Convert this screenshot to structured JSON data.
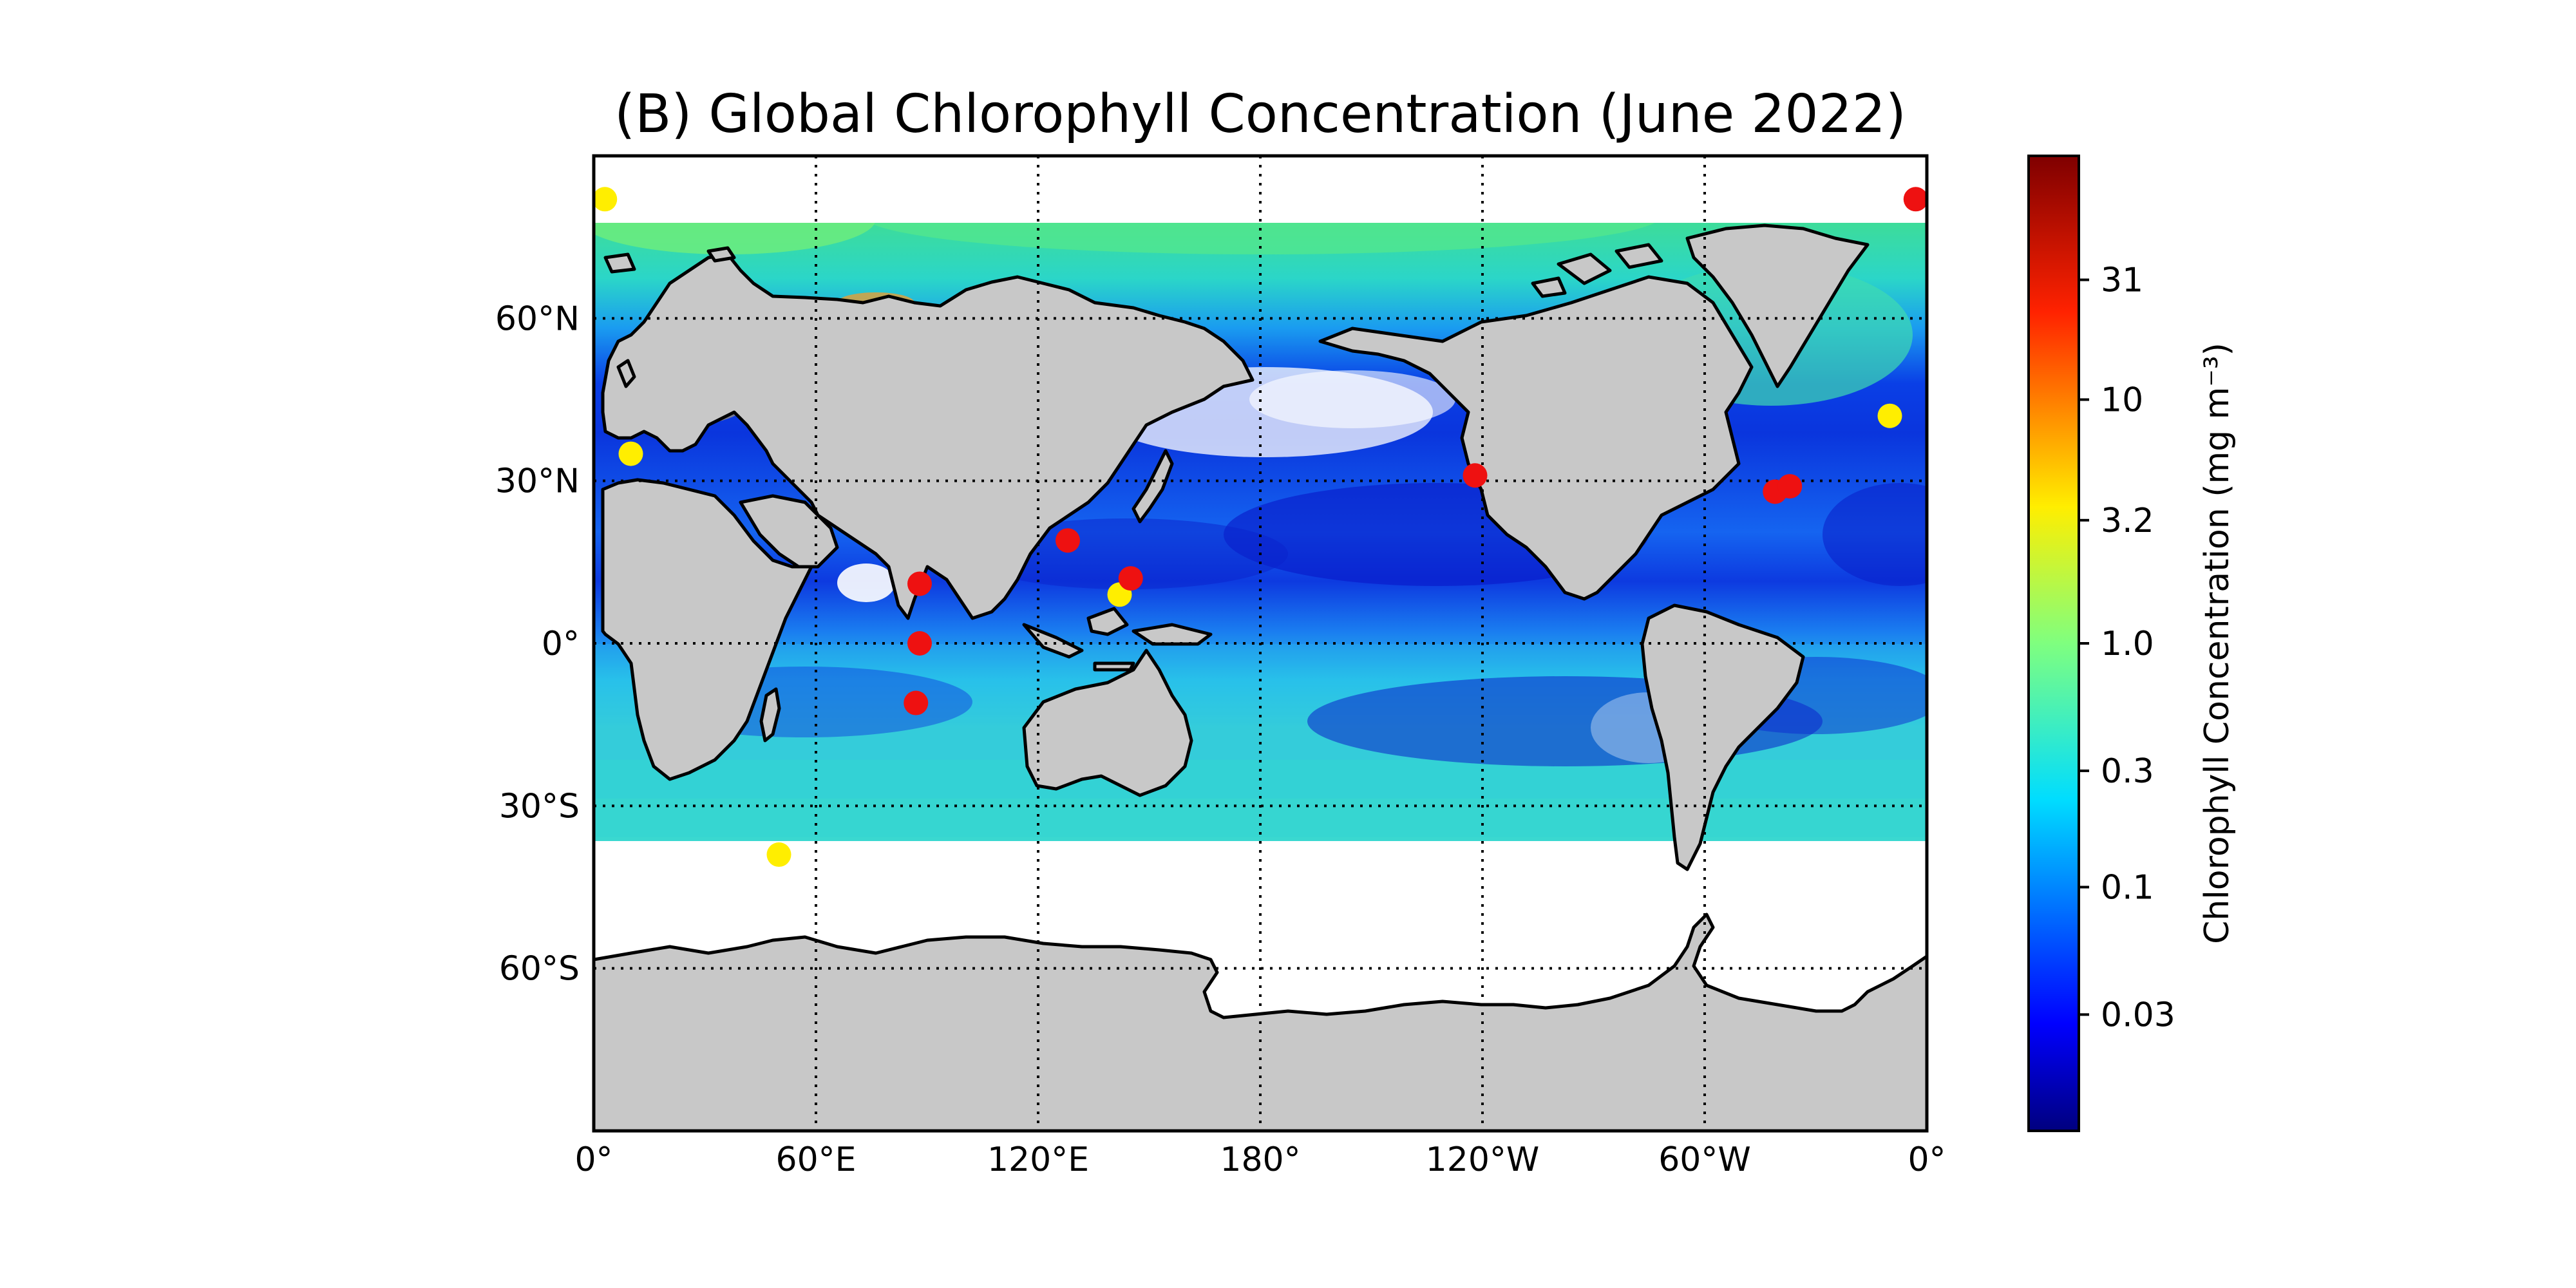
{
  "title": "(B) Global Chlorophyll Concentration (June 2022)",
  "map": {
    "projection": "equirectangular",
    "central_longitude": 180,
    "lon_range": [
      0,
      360
    ],
    "lat_range": [
      -90,
      90
    ],
    "x_ticks": [
      {
        "lon": 0,
        "label": "0°"
      },
      {
        "lon": 60,
        "label": "60°E"
      },
      {
        "lon": 120,
        "label": "120°E"
      },
      {
        "lon": 180,
        "label": "180°"
      },
      {
        "lon": 240,
        "label": "120°W"
      },
      {
        "lon": 300,
        "label": "60°W"
      },
      {
        "lon": 360,
        "label": "0°"
      }
    ],
    "y_ticks": [
      {
        "lat": 60,
        "label": "60°N"
      },
      {
        "lat": 30,
        "label": "30°N"
      },
      {
        "lat": 0,
        "label": "0°"
      },
      {
        "lat": -30,
        "label": "30°S"
      },
      {
        "lat": -60,
        "label": "60°S"
      }
    ],
    "gridlines": "dotted",
    "land_color": "#c8c8c8"
  },
  "colorbar": {
    "label": "Chlorophyll Concentration (mg m⁻³)",
    "scale": "log",
    "range": [
      0.01,
      100
    ],
    "colormap": "jet",
    "ticks": [
      {
        "value": 0.03,
        "label": "0.03"
      },
      {
        "value": 0.1,
        "label": "0.1"
      },
      {
        "value": 0.3,
        "label": "0.3"
      },
      {
        "value": 1.0,
        "label": "1.0"
      },
      {
        "value": 3.2,
        "label": "3.2"
      },
      {
        "value": 10,
        "label": "10"
      },
      {
        "value": 31,
        "label": "31"
      }
    ]
  },
  "markers": [
    {
      "lon": 3,
      "lat": 82,
      "color": "#ffee00"
    },
    {
      "lon": 10,
      "lat": 35,
      "color": "#ffee00"
    },
    {
      "lon": 50,
      "lat": -39,
      "color": "#ffee00"
    },
    {
      "lon": 142,
      "lat": 9,
      "color": "#ffee00"
    },
    {
      "lon": 350,
      "lat": 42,
      "color": "#ffee00"
    },
    {
      "lon": 88,
      "lat": 11,
      "color": "#ee1111"
    },
    {
      "lon": 88,
      "lat": 0,
      "color": "#ee1111"
    },
    {
      "lon": 87,
      "lat": -11,
      "color": "#ee1111"
    },
    {
      "lon": 128,
      "lat": 19,
      "color": "#ee1111"
    },
    {
      "lon": 145,
      "lat": 12,
      "color": "#ee1111"
    },
    {
      "lon": 238,
      "lat": 31,
      "color": "#ee1111"
    },
    {
      "lon": 319,
      "lat": 28,
      "color": "#ee1111"
    },
    {
      "lon": 323,
      "lat": 29,
      "color": "#ee1111"
    },
    {
      "lon": 357,
      "lat": 82,
      "color": "#ee1111"
    }
  ]
}
